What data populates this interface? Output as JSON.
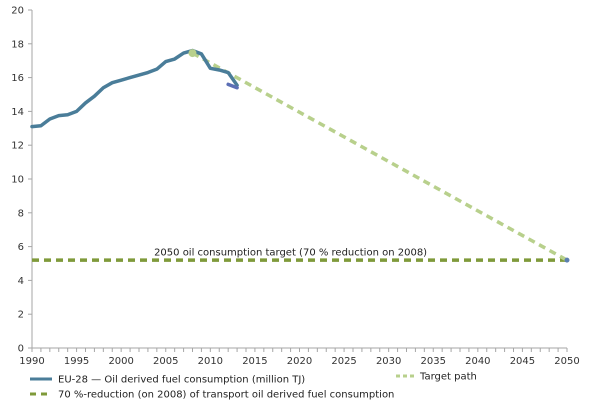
{
  "chart_data": {
    "type": "line",
    "title": "",
    "xlabel": "",
    "ylabel": "",
    "xlim": [
      1990,
      2050
    ],
    "ylim": [
      0,
      20
    ],
    "x_ticks": [
      1990,
      1995,
      2000,
      2005,
      2010,
      2015,
      2020,
      2025,
      2030,
      2035,
      2040,
      2045,
      2050
    ],
    "y_ticks": [
      0,
      2,
      4,
      6,
      8,
      10,
      12,
      14,
      16,
      18,
      20
    ],
    "grid": false,
    "series": [
      {
        "name": "EU-28 — Oil derived fuel consumption (million TJ)",
        "style": "solid",
        "color": "#4a7d99",
        "x": [
          1990,
          1991,
          1992,
          1993,
          1994,
          1995,
          1996,
          1997,
          1998,
          1999,
          2000,
          2001,
          2002,
          2003,
          2004,
          2005,
          2006,
          2007,
          2008,
          2009,
          2010,
          2011,
          2012,
          2013
        ],
        "values": [
          13.1,
          13.15,
          13.55,
          13.75,
          13.8,
          14.0,
          14.5,
          14.9,
          15.4,
          15.7,
          15.85,
          16.0,
          16.15,
          16.3,
          16.5,
          16.95,
          17.1,
          17.45,
          17.6,
          17.4,
          16.55,
          16.45,
          16.3,
          15.55
        ],
        "proxy_segment": {
          "x": [
            2012,
            2013
          ],
          "values": [
            15.6,
            15.4
          ],
          "color": "#5b6fb5"
        }
      },
      {
        "name": "Target path",
        "style": "dashed",
        "color": "#b8d08c",
        "x": [
          2008,
          2050
        ],
        "values": [
          17.45,
          5.2
        ]
      },
      {
        "name": "70 %-reduction (on 2008) of transport oil derived fuel consumption",
        "style": "dashed",
        "color": "#7f9a3a",
        "x": [
          1990,
          2050
        ],
        "values": [
          5.2,
          5.2
        ]
      }
    ],
    "annotations": [
      {
        "text": "2050 oil consumption target (70 % reduction on 2008)",
        "x": 2019,
        "y": 5.6
      }
    ],
    "legend": {
      "placement": "bottom",
      "entries": [
        {
          "label": "EU-28 — Oil derived fuel consumption (million TJ)",
          "color": "#4a7d99",
          "style": "solid"
        },
        {
          "label": "Target path",
          "color": "#b8d08c",
          "style": "dashed"
        },
        {
          "label": "70 %-reduction (on 2008) of transport oil derived fuel consumption",
          "color": "#7f9a3a",
          "style": "dashed"
        }
      ]
    }
  }
}
